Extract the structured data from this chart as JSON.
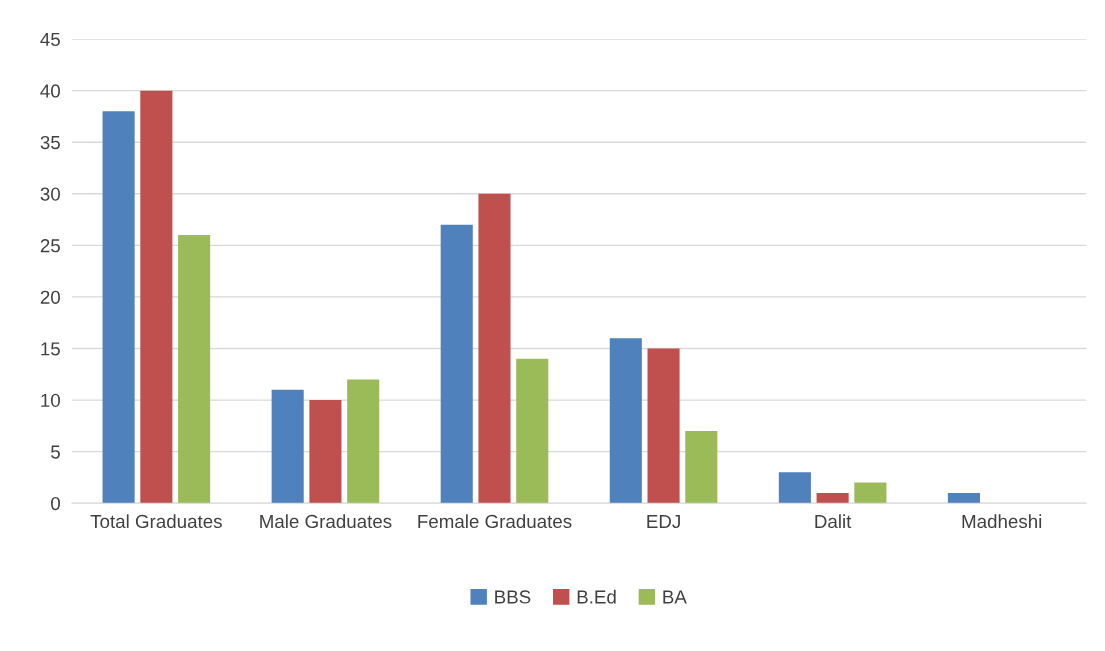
{
  "chart_data": {
    "type": "bar",
    "categories": [
      "Total Graduates",
      "Male Graduates",
      "Female Graduates",
      "EDJ",
      "Dalit",
      "Madheshi"
    ],
    "series": [
      {
        "name": "BBS",
        "color": "#4f81bd",
        "values": [
          38,
          11,
          27,
          16,
          3,
          1
        ]
      },
      {
        "name": "B.Ed",
        "color": "#c0504d",
        "values": [
          40,
          10,
          30,
          15,
          1,
          null
        ]
      },
      {
        "name": "BA",
        "color": "#9bbb59",
        "values": [
          26,
          12,
          14,
          7,
          2,
          null
        ]
      }
    ],
    "ylim": [
      0,
      45
    ],
    "yticks": [
      0,
      5,
      10,
      15,
      20,
      25,
      30,
      35,
      40,
      45
    ],
    "grid": "y",
    "legend": "bottom"
  }
}
